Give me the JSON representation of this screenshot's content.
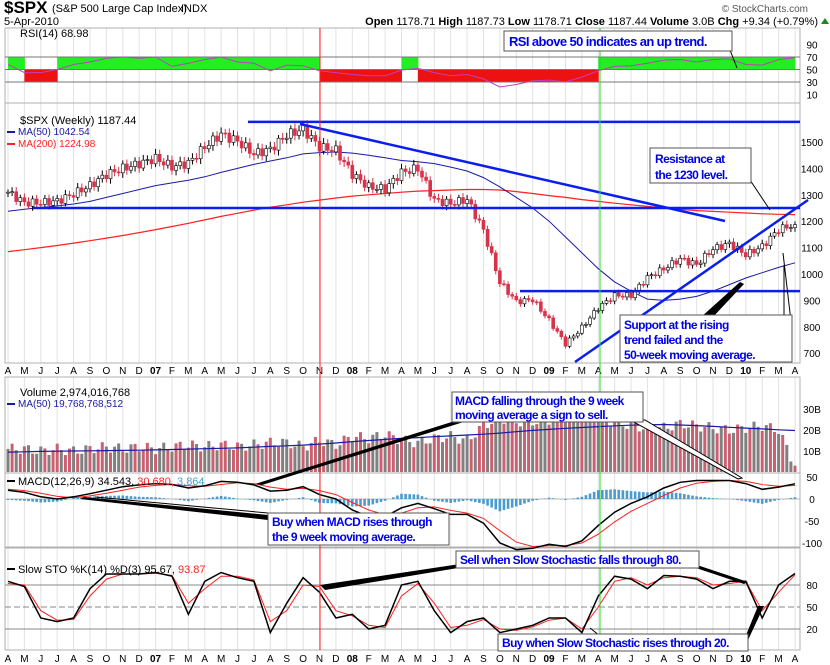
{
  "header": {
    "symbol": "$SPX",
    "name": "(S&P 500 Large Cap Index)",
    "exchange": "INDX",
    "date": "5-Apr-2010",
    "watermark": "© StockCharts.com",
    "open_label": "Open",
    "open": "1178.71",
    "high_label": "High",
    "high": "1187.73",
    "low_label": "Low",
    "low": "1178.71",
    "close_label": "Close",
    "close": "1187.44",
    "volume_label": "Volume",
    "volume": "3.0B",
    "chg_label": "Chg",
    "chg": "+9.34 (+0.79%)"
  },
  "colors": {
    "up": "#ffffff",
    "down": "#d8334a",
    "ma50": "#1a1aa8",
    "ma200": "#ff2020",
    "trend": "#0a1eee",
    "rsi_up": "#22ee22",
    "rsi_down": "#ee1111",
    "macd_hist": "#4a9cd0",
    "vol_up": "#808080",
    "vol_down": "#cc6070"
  },
  "annotations": {
    "rsi": "RSI above 50 indicates an up trend.",
    "resistance_1": "Resistance at",
    "resistance_2": "the 1230 level.",
    "support_1": "Support at the rising",
    "support_2": "trend failed and the",
    "support_3": "50-week moving average.",
    "macd_sell_1": "MACD falling through the 9 week",
    "macd_sell_2": "moving average a sign to sell.",
    "macd_buy_1": "Buy when MACD rises through",
    "macd_buy_2": "the 9 week moving average.",
    "sto_sell": "Sell when Slow Stochastic falls through 80.",
    "sto_buy": "Buy when Slow Stochastic rises through 20."
  },
  "chart_data": [
    {
      "type": "line",
      "panel": "rsi",
      "legend": "RSI(14) 68.98",
      "yticks": [
        "90",
        "70",
        "50",
        "30",
        "10"
      ],
      "values": [
        58,
        45,
        45,
        50,
        58,
        62,
        68,
        70,
        68,
        70,
        55,
        60,
        66,
        70,
        62,
        60,
        48,
        57,
        56,
        48,
        45,
        42,
        40,
        40,
        49,
        52,
        45,
        40,
        42,
        35,
        22,
        26,
        32,
        33,
        30,
        38,
        48,
        55,
        56,
        60,
        65,
        66,
        62,
        66,
        67,
        58,
        57,
        66,
        68.98
      ]
    },
    {
      "type": "candlestick",
      "panel": "price",
      "legend": "$SPX (Weekly) 1187.44",
      "ma50_legend": "MA(50) 1042.54",
      "ma200_legend": "MA(200) 1224.98",
      "yticks": [
        "1500",
        "1400",
        "1300",
        "1200",
        "1100",
        "1000",
        "900",
        "800",
        "700"
      ],
      "x_months": [
        "A",
        "M",
        "J",
        "J",
        "A",
        "S",
        "O",
        "N",
        "D",
        "07",
        "F",
        "M",
        "A",
        "M",
        "J",
        "J",
        "A",
        "S",
        "O",
        "N",
        "D",
        "08",
        "F",
        "M",
        "A",
        "M",
        "J",
        "J",
        "A",
        "S",
        "O",
        "N",
        "D",
        "09",
        "F",
        "M",
        "A",
        "M",
        "J",
        "J",
        "A",
        "S",
        "O",
        "N",
        "D",
        "10",
        "F",
        "M",
        "A"
      ],
      "close": [
        1310,
        1270,
        1270,
        1276,
        1303,
        1335,
        1377,
        1400,
        1418,
        1438,
        1406,
        1420,
        1482,
        1530,
        1503,
        1455,
        1473,
        1526,
        1549,
        1481,
        1468,
        1378,
        1330,
        1322,
        1385,
        1400,
        1280,
        1267,
        1282,
        1166,
        968,
        896,
        903,
        825,
        735,
        797,
        872,
        919,
        919,
        987,
        1020,
        1057,
        1036,
        1095,
        1115,
        1073,
        1104,
        1169,
        1187.44
      ],
      "ma50": [
        1238,
        1245,
        1252,
        1258,
        1265,
        1275,
        1290,
        1305,
        1320,
        1335,
        1345,
        1355,
        1368,
        1385,
        1400,
        1415,
        1428,
        1440,
        1455,
        1460,
        1462,
        1458,
        1450,
        1440,
        1430,
        1425,
        1418,
        1405,
        1390,
        1365,
        1330,
        1290,
        1250,
        1200,
        1140,
        1080,
        1020,
        970,
        935,
        905,
        900,
        905,
        915,
        935,
        960,
        985,
        1005,
        1025,
        1042.54
      ],
      "ma200": [
        1085,
        1092,
        1100,
        1108,
        1117,
        1126,
        1136,
        1146,
        1157,
        1168,
        1180,
        1192,
        1205,
        1218,
        1230,
        1242,
        1253,
        1262,
        1272,
        1280,
        1288,
        1295,
        1300,
        1305,
        1310,
        1314,
        1316,
        1318,
        1320,
        1320,
        1318,
        1312,
        1305,
        1297,
        1290,
        1282,
        1275,
        1268,
        1262,
        1256,
        1250,
        1245,
        1240,
        1237,
        1234,
        1231,
        1228,
        1226,
        1224.98
      ],
      "trendlines": {
        "top_resistance": 1576,
        "resistance": 1250,
        "support": 935
      }
    },
    {
      "type": "bar",
      "panel": "volume",
      "legend": "Volume 2,974,016,768",
      "ma_legend": "MA(50) 19,768,768,512",
      "yticks": [
        "30B",
        "20B",
        "10B"
      ],
      "values_billions": [
        11,
        11,
        10,
        11,
        10,
        11,
        12,
        11,
        12,
        11,
        12,
        13,
        12,
        13,
        12,
        13,
        14,
        14,
        12,
        15,
        13,
        17,
        16,
        18,
        15,
        14,
        16,
        17,
        15,
        22,
        26,
        24,
        24,
        25,
        26,
        27,
        26,
        24,
        22,
        21,
        21,
        23,
        22,
        21,
        20,
        21,
        22,
        20,
        3.0
      ],
      "ma_values_billions": [
        9.5,
        9.6,
        9.8,
        9.9,
        10,
        10.1,
        10.2,
        10.3,
        10.4,
        10.5,
        10.7,
        10.9,
        11.1,
        11.3,
        11.5,
        11.8,
        12.2,
        12.5,
        12.8,
        13.3,
        13.8,
        14.5,
        15,
        15.5,
        16,
        16.4,
        16.8,
        17.2,
        17.6,
        18,
        18.5,
        19.2,
        19.8,
        20.3,
        20.8,
        21.2,
        21.6,
        22,
        22.3,
        22.5,
        22.6,
        22.4,
        22.1,
        21.7,
        21.3,
        20.9,
        20.5,
        20.1,
        19.77
      ]
    },
    {
      "type": "line",
      "panel": "macd",
      "legend": "MACD(12,26,9)",
      "legend_macd": "34.543,",
      "legend_signal": "30.680,",
      "legend_hist": "3.864",
      "yticks": [
        "50",
        "0",
        "-50",
        "-100"
      ],
      "macd": [
        20,
        15,
        5,
        0,
        5,
        12,
        20,
        28,
        32,
        35,
        33,
        25,
        30,
        40,
        38,
        32,
        18,
        20,
        28,
        10,
        0,
        -25,
        -40,
        -40,
        -20,
        -10,
        -22,
        -35,
        -35,
        -55,
        -100,
        -115,
        -112,
        -103,
        -108,
        -95,
        -60,
        -30,
        -10,
        5,
        25,
        38,
        42,
        42,
        42,
        35,
        22,
        27,
        34.543
      ],
      "signal": [
        22,
        19,
        13,
        6,
        3,
        7,
        13,
        20,
        27,
        31,
        33,
        30,
        29,
        33,
        37,
        35,
        27,
        22,
        24,
        19,
        10,
        -8,
        -25,
        -36,
        -32,
        -20,
        -18,
        -26,
        -32,
        -44,
        -72,
        -98,
        -108,
        -106,
        -106,
        -100,
        -80,
        -52,
        -28,
        -10,
        8,
        25,
        36,
        40,
        42,
        40,
        33,
        29,
        30.68
      ]
    },
    {
      "type": "line",
      "panel": "stochastic",
      "legend": "Slow STO %K(14) %D(3) 95.67,",
      "legend_d": "93.87",
      "yticks": [
        "80",
        "50",
        "20"
      ],
      "k": [
        85,
        78,
        35,
        30,
        35,
        75,
        95,
        95,
        95,
        97,
        92,
        40,
        85,
        97,
        90,
        85,
        15,
        55,
        90,
        70,
        35,
        40,
        20,
        25,
        80,
        85,
        45,
        15,
        30,
        35,
        15,
        20,
        25,
        35,
        35,
        15,
        65,
        92,
        88,
        75,
        93,
        92,
        88,
        75,
        85,
        85,
        35,
        80,
        95.67
      ],
      "d": [
        82,
        80,
        45,
        32,
        33,
        65,
        88,
        95,
        95,
        96,
        93,
        55,
        75,
        92,
        92,
        87,
        30,
        45,
        80,
        78,
        45,
        38,
        25,
        22,
        65,
        82,
        55,
        22,
        25,
        33,
        20,
        18,
        23,
        32,
        35,
        20,
        50,
        85,
        90,
        80,
        90,
        92,
        90,
        80,
        82,
        85,
        45,
        70,
        93.87
      ]
    }
  ]
}
